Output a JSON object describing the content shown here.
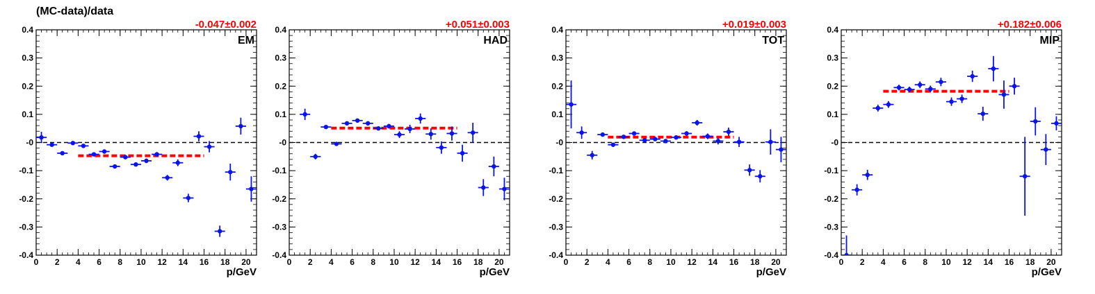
{
  "figure": {
    "title": "(MC-data)/data",
    "colors": {
      "points": "#0a14e6",
      "fit": "#ff0000",
      "axes": "#000000",
      "zero_line": "#000000"
    }
  },
  "chart_data": [
    {
      "type": "scatter",
      "label": "EM",
      "fit_text": "-0.047±0.002",
      "fit_value": -0.047,
      "fit_range": [
        4,
        16
      ],
      "xlabel": "p/GeV",
      "ylabel": "",
      "xlim": [
        0,
        21
      ],
      "ylim": [
        -0.4,
        0.4
      ],
      "xticks": [
        0,
        2,
        4,
        6,
        8,
        10,
        12,
        14,
        16,
        18,
        20
      ],
      "yticks": [
        -0.4,
        -0.3,
        -0.2,
        -0.1,
        0,
        0.1,
        0.2,
        0.3,
        0.4
      ],
      "ytick_labels": [
        "-0.4",
        "-0.3",
        "-0.2",
        "-0.1",
        "-0",
        "0.1",
        "0.2",
        "0.3",
        "0.4"
      ],
      "points": [
        {
          "x": 0.5,
          "y": 0.018,
          "err": 0.02
        },
        {
          "x": 1.5,
          "y": -0.008,
          "err": 0.004
        },
        {
          "x": 2.5,
          "y": -0.038,
          "err": 0.004
        },
        {
          "x": 3.5,
          "y": -0.002,
          "err": 0.003
        },
        {
          "x": 4.5,
          "y": -0.012,
          "err": 0.004
        },
        {
          "x": 5.5,
          "y": -0.042,
          "err": 0.005
        },
        {
          "x": 6.5,
          "y": -0.032,
          "err": 0.005
        },
        {
          "x": 7.5,
          "y": -0.085,
          "err": 0.006
        },
        {
          "x": 8.5,
          "y": -0.052,
          "err": 0.006
        },
        {
          "x": 9.5,
          "y": -0.078,
          "err": 0.007
        },
        {
          "x": 10.5,
          "y": -0.065,
          "err": 0.008
        },
        {
          "x": 11.5,
          "y": -0.042,
          "err": 0.008
        },
        {
          "x": 12.5,
          "y": -0.125,
          "err": 0.01
        },
        {
          "x": 13.5,
          "y": -0.072,
          "err": 0.012
        },
        {
          "x": 14.5,
          "y": -0.197,
          "err": 0.015
        },
        {
          "x": 15.5,
          "y": 0.022,
          "err": 0.018
        },
        {
          "x": 16.5,
          "y": -0.015,
          "err": 0.02
        },
        {
          "x": 17.5,
          "y": -0.315,
          "err": 0.02
        },
        {
          "x": 18.5,
          "y": -0.105,
          "err": 0.03
        },
        {
          "x": 19.5,
          "y": 0.058,
          "err": 0.03
        },
        {
          "x": 20.5,
          "y": -0.165,
          "err": 0.045
        }
      ]
    },
    {
      "type": "scatter",
      "label": "HAD",
      "fit_text": "+0.051±0.003",
      "fit_value": 0.051,
      "fit_range": [
        4,
        16
      ],
      "xlabel": "p/GeV",
      "ylabel": "",
      "xlim": [
        0,
        21
      ],
      "ylim": [
        -0.4,
        0.4
      ],
      "xticks": [
        0,
        2,
        4,
        6,
        8,
        10,
        12,
        14,
        16,
        18,
        20
      ],
      "yticks": [
        -0.4,
        -0.3,
        -0.2,
        -0.1,
        0,
        0.1,
        0.2,
        0.3,
        0.4
      ],
      "ytick_labels": [
        "-0.4",
        "-0.3",
        "-0.2",
        "-0.1",
        "-0",
        "0.1",
        "0.2",
        "0.3",
        "0.4"
      ],
      "points": [
        {
          "x": 1.5,
          "y": 0.1,
          "err": 0.02
        },
        {
          "x": 2.5,
          "y": -0.05,
          "err": 0.01
        },
        {
          "x": 3.5,
          "y": 0.055,
          "err": 0.006
        },
        {
          "x": 4.5,
          "y": -0.005,
          "err": 0.004
        },
        {
          "x": 5.5,
          "y": 0.068,
          "err": 0.005
        },
        {
          "x": 6.5,
          "y": 0.078,
          "err": 0.005
        },
        {
          "x": 7.5,
          "y": 0.068,
          "err": 0.006
        },
        {
          "x": 8.5,
          "y": 0.05,
          "err": 0.007
        },
        {
          "x": 9.5,
          "y": 0.058,
          "err": 0.008
        },
        {
          "x": 10.5,
          "y": 0.028,
          "err": 0.012
        },
        {
          "x": 11.5,
          "y": 0.048,
          "err": 0.015
        },
        {
          "x": 12.5,
          "y": 0.085,
          "err": 0.018
        },
        {
          "x": 13.5,
          "y": 0.03,
          "err": 0.02
        },
        {
          "x": 14.5,
          "y": -0.018,
          "err": 0.022
        },
        {
          "x": 15.5,
          "y": 0.032,
          "err": 0.025
        },
        {
          "x": 16.5,
          "y": -0.038,
          "err": 0.03
        },
        {
          "x": 17.5,
          "y": 0.035,
          "err": 0.035
        },
        {
          "x": 18.5,
          "y": -0.16,
          "err": 0.03
        },
        {
          "x": 19.5,
          "y": -0.085,
          "err": 0.035
        },
        {
          "x": 20.5,
          "y": -0.165,
          "err": 0.04
        }
      ]
    },
    {
      "type": "scatter",
      "label": "TOT",
      "fit_text": "+0.019±0.003",
      "fit_value": 0.019,
      "fit_range": [
        4,
        16
      ],
      "xlabel": "p/GeV",
      "ylabel": "",
      "xlim": [
        0,
        21
      ],
      "ylim": [
        -0.4,
        0.4
      ],
      "xticks": [
        0,
        2,
        4,
        6,
        8,
        10,
        12,
        14,
        16,
        18,
        20
      ],
      "yticks": [
        -0.4,
        -0.3,
        -0.2,
        -0.1,
        0,
        0.1,
        0.2,
        0.3,
        0.4
      ],
      "ytick_labels": [
        "-0.4",
        "-0.3",
        "-0.2",
        "-0.1",
        "-0",
        "0.1",
        "0.2",
        "0.3",
        "0.4"
      ],
      "points": [
        {
          "x": 0.5,
          "y": 0.135,
          "err": 0.085
        },
        {
          "x": 1.5,
          "y": 0.035,
          "err": 0.022
        },
        {
          "x": 2.5,
          "y": -0.045,
          "err": 0.015
        },
        {
          "x": 3.5,
          "y": 0.028,
          "err": 0.006
        },
        {
          "x": 4.5,
          "y": -0.008,
          "err": 0.004
        },
        {
          "x": 5.5,
          "y": 0.02,
          "err": 0.004
        },
        {
          "x": 6.5,
          "y": 0.032,
          "err": 0.004
        },
        {
          "x": 7.5,
          "y": 0.008,
          "err": 0.005
        },
        {
          "x": 8.5,
          "y": 0.012,
          "err": 0.005
        },
        {
          "x": 9.5,
          "y": 0.005,
          "err": 0.006
        },
        {
          "x": 10.5,
          "y": 0.018,
          "err": 0.007
        },
        {
          "x": 11.5,
          "y": 0.032,
          "err": 0.008
        },
        {
          "x": 12.5,
          "y": 0.07,
          "err": 0.01
        },
        {
          "x": 13.5,
          "y": 0.022,
          "err": 0.01
        },
        {
          "x": 14.5,
          "y": 0.005,
          "err": 0.012
        },
        {
          "x": 15.5,
          "y": 0.038,
          "err": 0.015
        },
        {
          "x": 16.5,
          "y": 0.002,
          "err": 0.018
        },
        {
          "x": 17.5,
          "y": -0.098,
          "err": 0.02
        },
        {
          "x": 18.5,
          "y": -0.12,
          "err": 0.022
        },
        {
          "x": 19.5,
          "y": 0.002,
          "err": 0.045
        },
        {
          "x": 20.5,
          "y": -0.025,
          "err": 0.045
        }
      ]
    },
    {
      "type": "scatter",
      "label": "MIP",
      "fit_text": "+0.182±0.006",
      "fit_value": 0.182,
      "fit_range": [
        4,
        16
      ],
      "xlabel": "p/GeV",
      "ylabel": "",
      "xlim": [
        0,
        21
      ],
      "ylim": [
        -0.4,
        0.4
      ],
      "xticks": [
        0,
        2,
        4,
        6,
        8,
        10,
        12,
        14,
        16,
        18,
        20
      ],
      "yticks": [
        -0.4,
        -0.3,
        -0.2,
        -0.1,
        0,
        0.1,
        0.2,
        0.3,
        0.4
      ],
      "ytick_labels": [
        "-0.4",
        "-0.3",
        "-0.2",
        "-0.1",
        "-0",
        "0.1",
        "0.2",
        "0.3",
        "0.4"
      ],
      "points": [
        {
          "x": 0.5,
          "y": -0.4,
          "err": 0.07
        },
        {
          "x": 1.5,
          "y": -0.168,
          "err": 0.02
        },
        {
          "x": 2.5,
          "y": -0.115,
          "err": 0.018
        },
        {
          "x": 3.5,
          "y": 0.122,
          "err": 0.012
        },
        {
          "x": 4.5,
          "y": 0.135,
          "err": 0.012
        },
        {
          "x": 5.5,
          "y": 0.195,
          "err": 0.01
        },
        {
          "x": 6.5,
          "y": 0.188,
          "err": 0.01
        },
        {
          "x": 7.5,
          "y": 0.205,
          "err": 0.012
        },
        {
          "x": 8.5,
          "y": 0.19,
          "err": 0.012
        },
        {
          "x": 9.5,
          "y": 0.215,
          "err": 0.015
        },
        {
          "x": 10.5,
          "y": 0.145,
          "err": 0.015
        },
        {
          "x": 11.5,
          "y": 0.155,
          "err": 0.015
        },
        {
          "x": 12.5,
          "y": 0.235,
          "err": 0.02
        },
        {
          "x": 13.5,
          "y": 0.102,
          "err": 0.025
        },
        {
          "x": 14.5,
          "y": 0.262,
          "err": 0.045
        },
        {
          "x": 15.5,
          "y": 0.17,
          "err": 0.05
        },
        {
          "x": 16.5,
          "y": 0.2,
          "err": 0.03
        },
        {
          "x": 17.5,
          "y": -0.12,
          "err": 0.14
        },
        {
          "x": 18.5,
          "y": 0.075,
          "err": 0.05
        },
        {
          "x": 19.5,
          "y": -0.025,
          "err": 0.055
        },
        {
          "x": 20.5,
          "y": 0.068,
          "err": 0.025
        }
      ]
    }
  ]
}
